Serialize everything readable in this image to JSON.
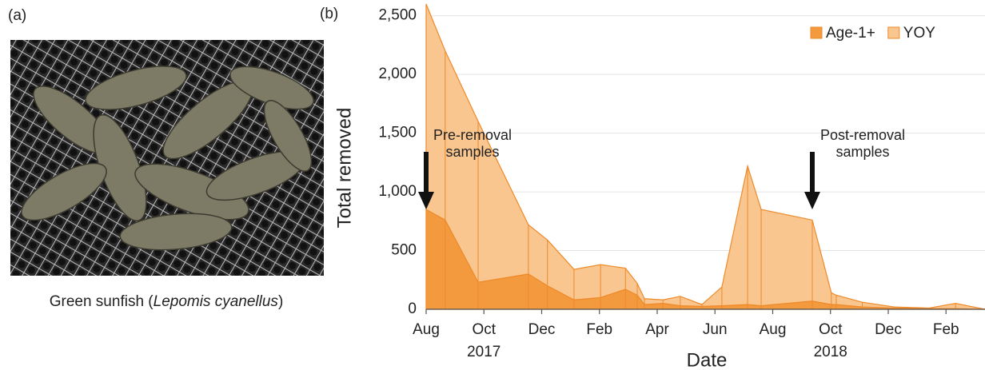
{
  "panel_a": {
    "label": "(a)",
    "caption_prefix": "Green sunfish (",
    "caption_species": "Lepomis cyanellus",
    "caption_suffix": ")"
  },
  "chart_data": {
    "type": "stacked_area",
    "panel_label": "(b)",
    "x_label": "Date",
    "y_label": "Total removed",
    "x": [
      0,
      0.66,
      1.8,
      3.54,
      4.2,
      5.12,
      6.04,
      6.9,
      7.31,
      7.56,
      8.2,
      8.8,
      9.55,
      10.24,
      11.13,
      11.6,
      13.37,
      14.03,
      14.2,
      15.1,
      16.2,
      17.4,
      18.33,
      19.35
    ],
    "series": [
      {
        "name": "Age-1+",
        "color": "#f39a3e",
        "values": [
          850,
          760,
          230,
          300,
          200,
          80,
          100,
          170,
          120,
          40,
          50,
          30,
          25,
          30,
          40,
          30,
          70,
          40,
          40,
          20,
          10,
          5,
          5,
          0
        ]
      },
      {
        "name": "YOY",
        "color": "#f9c690",
        "values": [
          1750,
          1440,
          1370,
          420,
          390,
          260,
          280,
          180,
          100,
          50,
          30,
          80,
          15,
          160,
          1180,
          820,
          690,
          100,
          80,
          40,
          10,
          5,
          45,
          0
        ]
      }
    ],
    "xlim": [
      0,
      19.35
    ],
    "xticks": [
      {
        "value": 0,
        "label": "Aug"
      },
      {
        "value": 2,
        "label": "Oct"
      },
      {
        "value": 4,
        "label": "Dec"
      },
      {
        "value": 6,
        "label": "Feb"
      },
      {
        "value": 8,
        "label": "Apr"
      },
      {
        "value": 10,
        "label": "Jun"
      },
      {
        "value": 12,
        "label": "Aug"
      },
      {
        "value": 14,
        "label": "Oct"
      },
      {
        "value": 16,
        "label": "Dec"
      },
      {
        "value": 18,
        "label": "Feb"
      }
    ],
    "year_labels": [
      {
        "value": 2,
        "label": "2017"
      },
      {
        "value": 14,
        "label": "2018"
      }
    ],
    "ylim": [
      0,
      2600
    ],
    "yticks": [
      0,
      500,
      {
        "value": 1000,
        "label": "1,000"
      },
      {
        "value": 1500,
        "label": "1,500"
      },
      {
        "value": 2000,
        "label": "2,000"
      },
      {
        "value": 2500,
        "label": "2,500"
      }
    ],
    "grid": true,
    "legend": "top-right",
    "annotations": [
      {
        "x": 0,
        "lines": [
          "Pre-removal",
          "samples"
        ]
      },
      {
        "x": 13.37,
        "lines": [
          "Post-removal",
          "samples"
        ]
      }
    ]
  }
}
